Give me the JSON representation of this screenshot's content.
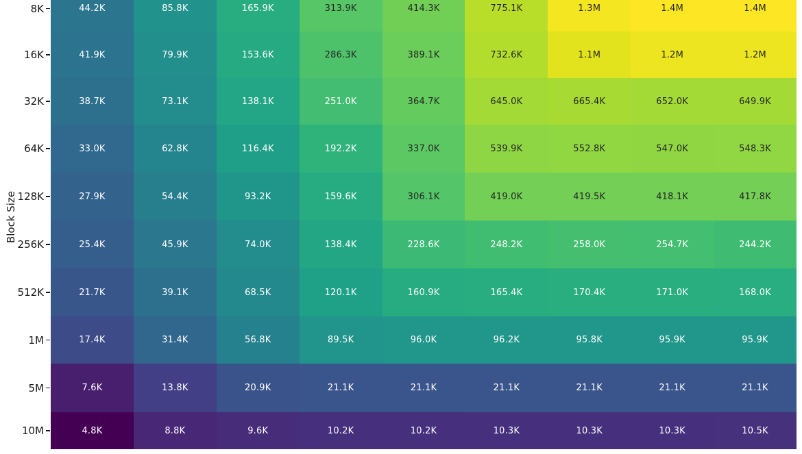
{
  "chart_data": {
    "type": "heatmap",
    "title": "",
    "ylabel": "Block Size",
    "y_categories": [
      "8K",
      "16K",
      "32K",
      "64K",
      "128K",
      "256K",
      "512K",
      "1M",
      "5M",
      "10M"
    ],
    "n_cols": 9,
    "cell_labels": [
      [
        "44.2K",
        "85.8K",
        "165.9K",
        "313.9K",
        "414.3K",
        "775.1K",
        "1.3M",
        "1.4M",
        "1.4M"
      ],
      [
        "41.9K",
        "79.9K",
        "153.6K",
        "286.3K",
        "389.1K",
        "732.6K",
        "1.1M",
        "1.2M",
        "1.2M"
      ],
      [
        "38.7K",
        "73.1K",
        "138.1K",
        "251.0K",
        "364.7K",
        "645.0K",
        "665.4K",
        "652.0K",
        "649.9K"
      ],
      [
        "33.0K",
        "62.8K",
        "116.4K",
        "192.2K",
        "337.0K",
        "539.9K",
        "552.8K",
        "547.0K",
        "548.3K"
      ],
      [
        "27.9K",
        "54.4K",
        "93.2K",
        "159.6K",
        "306.1K",
        "419.0K",
        "419.5K",
        "418.1K",
        "417.8K"
      ],
      [
        "25.4K",
        "45.9K",
        "74.0K",
        "138.4K",
        "228.6K",
        "248.2K",
        "258.0K",
        "254.7K",
        "244.2K"
      ],
      [
        "21.7K",
        "39.1K",
        "68.5K",
        "120.1K",
        "160.9K",
        "165.4K",
        "170.4K",
        "171.0K",
        "168.0K"
      ],
      [
        "17.4K",
        "31.4K",
        "56.8K",
        "89.5K",
        "96.0K",
        "96.2K",
        "95.8K",
        "95.9K",
        "95.9K"
      ],
      [
        "7.6K",
        "13.8K",
        "20.9K",
        "21.1K",
        "21.1K",
        "21.1K",
        "21.1K",
        "21.1K",
        "21.1K"
      ],
      [
        "4.8K",
        "8.8K",
        "9.6K",
        "10.2K",
        "10.2K",
        "10.3K",
        "10.3K",
        "10.3K",
        "10.5K"
      ]
    ],
    "values": [
      [
        44200,
        85800,
        165900,
        313900,
        414300,
        775100,
        1300000,
        1400000,
        1400000
      ],
      [
        41900,
        79900,
        153600,
        286300,
        389100,
        732600,
        1100000,
        1200000,
        1200000
      ],
      [
        38700,
        73100,
        138100,
        251000,
        364700,
        645000,
        665400,
        652000,
        649900
      ],
      [
        33000,
        62800,
        116400,
        192200,
        337000,
        539900,
        552800,
        547000,
        548300
      ],
      [
        27900,
        54400,
        93200,
        159600,
        306100,
        419000,
        419500,
        418100,
        417800
      ],
      [
        25400,
        45900,
        74000,
        138400,
        228600,
        248200,
        258000,
        254700,
        244200
      ],
      [
        21700,
        39100,
        68500,
        120100,
        160900,
        165400,
        170400,
        171000,
        168000
      ],
      [
        17400,
        31400,
        56800,
        89500,
        96000,
        96200,
        95800,
        95900,
        95900
      ],
      [
        7600,
        13800,
        20900,
        21100,
        21100,
        21100,
        21100,
        21100,
        21100
      ],
      [
        4800,
        8800,
        9600,
        10200,
        10200,
        10300,
        10300,
        10300,
        10500
      ]
    ],
    "colormap": "viridis",
    "color_norm": "log",
    "vmin": 4800,
    "vmax": 1400000,
    "grid": false,
    "legend": "none",
    "colors": {
      "dark_text": "#262626",
      "light_text": "#ffffff",
      "axis_text": "#1a1a1a",
      "background": "#ffffff"
    }
  }
}
